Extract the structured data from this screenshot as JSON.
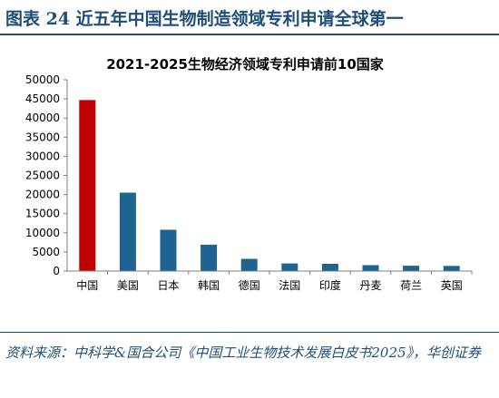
{
  "figure": {
    "title": "图表 24   近五年中国生物制造领域专利申请全球第一",
    "source": "资料来源：中科学&国合公司《中国工业生物技术发展白皮书2025》，华创证券"
  },
  "colors": {
    "accent": "#1f4e79",
    "bar_default": "#1f6393",
    "bar_highlight": "#c00000"
  },
  "chart_data": {
    "type": "bar",
    "title": "2021-2025生物经济领域专利申请前10国家",
    "xlabel": "",
    "ylabel": "",
    "categories": [
      "中国",
      "美国",
      "日本",
      "韩国",
      "德国",
      "法国",
      "印度",
      "丹麦",
      "荷兰",
      "英国"
    ],
    "values": [
      44700,
      20500,
      10800,
      6900,
      3200,
      2000,
      1900,
      1550,
      1400,
      1350
    ],
    "highlight_index": 0,
    "ylim": [
      0,
      50000
    ],
    "yticks": [
      "0",
      "5000",
      "10000",
      "15000",
      "20000",
      "25000",
      "30000",
      "35000",
      "40000",
      "45000",
      "50000"
    ],
    "grid": false,
    "legend": "none"
  }
}
